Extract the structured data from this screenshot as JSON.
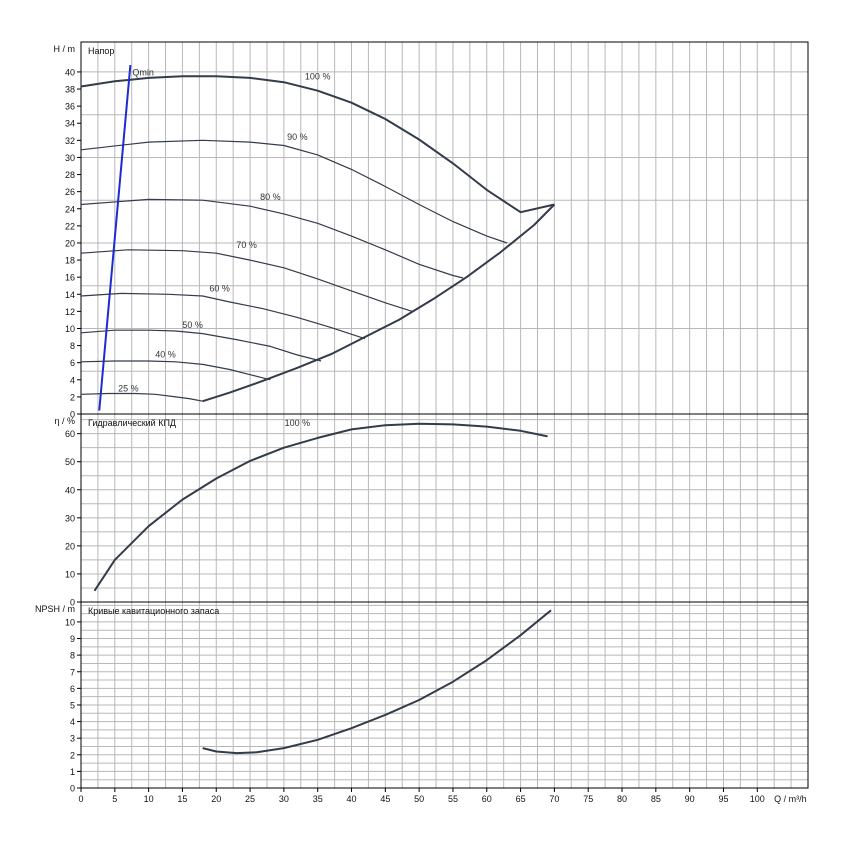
{
  "chart_data": [
    {
      "type": "line",
      "title": "Напор",
      "ylabel": "H / m",
      "xlim": [
        0,
        107.5
      ],
      "ylim": [
        0,
        43.5
      ],
      "yticks": [
        0,
        2,
        4,
        6,
        8,
        10,
        12,
        14,
        16,
        18,
        20,
        22,
        24,
        26,
        28,
        30,
        32,
        34,
        36,
        38,
        40
      ],
      "grid": true,
      "series": [
        {
          "name": "100 %",
          "label_x": 35,
          "label_y": 38.9,
          "x": [
            0,
            5,
            10,
            15,
            20,
            25,
            30,
            35,
            40,
            45,
            50,
            55,
            60,
            65,
            70
          ],
          "y": [
            38.3,
            38.9,
            39.3,
            39.5,
            39.5,
            39.3,
            38.8,
            37.8,
            36.4,
            34.5,
            32.1,
            29.3,
            26.2,
            23.6,
            24.5
          ]
        },
        {
          "name": "90 %",
          "label_x": 32,
          "label_y": 31.8,
          "x": [
            0,
            10,
            18,
            25,
            30,
            35,
            40,
            45,
            50,
            55,
            60,
            63
          ],
          "y": [
            30.9,
            31.8,
            32.0,
            31.8,
            31.4,
            30.3,
            28.6,
            26.6,
            24.5,
            22.5,
            20.8,
            20.0
          ]
        },
        {
          "name": "80 %",
          "label_x": 28,
          "label_y": 24.8,
          "x": [
            0,
            10,
            18,
            25,
            30,
            35,
            40,
            45,
            50,
            55,
            56.5
          ],
          "y": [
            24.5,
            25.1,
            25.0,
            24.3,
            23.4,
            22.3,
            20.8,
            19.2,
            17.5,
            16.2,
            15.9
          ]
        },
        {
          "name": "70 %",
          "label_x": 24.5,
          "label_y": 19.2,
          "x": [
            0,
            7,
            15,
            20,
            25,
            30,
            35,
            40,
            45,
            49
          ],
          "y": [
            18.8,
            19.2,
            19.1,
            18.8,
            18.0,
            17.1,
            15.8,
            14.4,
            13.0,
            12.0
          ]
        },
        {
          "name": "60 %",
          "label_x": 20.5,
          "label_y": 14.1,
          "x": [
            0,
            6,
            13,
            18,
            22,
            27,
            32,
            37,
            42
          ],
          "y": [
            13.8,
            14.1,
            14.0,
            13.8,
            13.1,
            12.3,
            11.3,
            10.1,
            8.8
          ]
        },
        {
          "name": "50 %",
          "label_x": 16.5,
          "label_y": 9.8,
          "x": [
            0,
            5,
            10,
            14,
            18,
            23,
            28,
            32,
            35.5
          ],
          "y": [
            9.5,
            9.8,
            9.8,
            9.7,
            9.4,
            8.7,
            7.9,
            6.9,
            6.2
          ]
        },
        {
          "name": "40 %",
          "label_x": 12.5,
          "label_y": 6.4,
          "x": [
            0,
            5,
            10,
            14,
            18,
            22,
            25,
            28
          ],
          "y": [
            6.1,
            6.2,
            6.2,
            6.1,
            5.8,
            5.2,
            4.6,
            4.0
          ]
        },
        {
          "name": "25 %",
          "label_x": 7,
          "label_y": 2.4,
          "x": [
            0,
            4,
            8,
            11,
            14,
            16,
            18
          ],
          "y": [
            2.3,
            2.4,
            2.4,
            2.3,
            2.0,
            1.8,
            1.5
          ]
        },
        {
          "name": "",
          "x": [
            18,
            22,
            27,
            32,
            37,
            42,
            47,
            52,
            57,
            62,
            67,
            70
          ],
          "y": [
            1.5,
            2.5,
            3.9,
            5.4,
            7.0,
            9.0,
            11.0,
            13.4,
            16.0,
            18.9,
            22.1,
            24.5
          ]
        }
      ],
      "qmin": {
        "label": "Qmin",
        "x": [
          2.7,
          7.3
        ],
        "y": [
          0.4,
          40.8
        ]
      }
    },
    {
      "type": "line",
      "title": "Гидравлический КПД",
      "ylabel": "η / %",
      "xlim": [
        0,
        107.5
      ],
      "ylim": [
        0,
        67
      ],
      "yticks": [
        0,
        10,
        20,
        30,
        40,
        50,
        60
      ],
      "grid": true,
      "series": [
        {
          "name": "100 %",
          "label_x": 32,
          "label_y": 62,
          "x": [
            2,
            5,
            10,
            15,
            20,
            25,
            30,
            35,
            40,
            45,
            50,
            55,
            60,
            65,
            69
          ],
          "y": [
            4,
            15,
            27,
            36.5,
            44,
            50.3,
            55,
            58.5,
            61.5,
            63,
            63.5,
            63.3,
            62.5,
            61,
            59
          ]
        }
      ]
    },
    {
      "type": "line",
      "title": "Кривые кавитационного запаса",
      "ylabel": "NPSH / m",
      "xlabel": "Q / m³/h",
      "xlim": [
        0,
        107.5
      ],
      "ylim": [
        0,
        11.2
      ],
      "xticks": [
        0,
        5,
        10,
        15,
        20,
        25,
        30,
        35,
        40,
        45,
        50,
        55,
        60,
        65,
        70,
        75,
        80,
        85,
        90,
        95,
        100
      ],
      "yticks": [
        0,
        1,
        2,
        3,
        4,
        5,
        6,
        7,
        8,
        9,
        10
      ],
      "grid": true,
      "series": [
        {
          "name": "",
          "x": [
            18,
            20,
            23,
            26,
            30,
            35,
            40,
            45,
            50,
            55,
            60,
            65,
            69.5
          ],
          "y": [
            2.4,
            2.2,
            2.1,
            2.15,
            2.4,
            2.9,
            3.6,
            4.4,
            5.3,
            6.4,
            7.7,
            9.2,
            10.7
          ]
        }
      ]
    }
  ]
}
